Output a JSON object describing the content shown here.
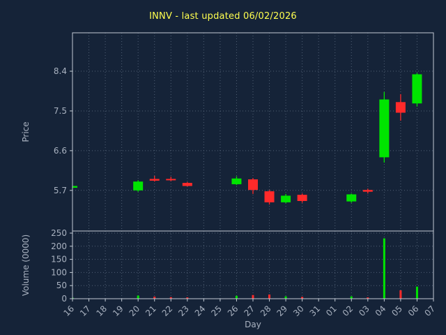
{
  "title": "INNV - last updated 06/02/2026",
  "price_axis_label": "Price",
  "volume_axis_label": "Volume (0000)",
  "x_axis_label": "Day",
  "colors": {
    "background": "#152338",
    "grid": "#8293a8",
    "axis_line": "#c2cad4",
    "axis_text": "#a9b2c0",
    "title": "#ffff4f",
    "up": "#00e400",
    "down": "#ff2a2a"
  },
  "chart_data": {
    "type": "candlestick+volume",
    "title": "INNV - last updated 06/02/2026",
    "xlabel": "Day",
    "ylabel_price": "Price",
    "ylabel_volume": "Volume (0000)",
    "x_ticks": [
      "16",
      "17",
      "18",
      "19",
      "20",
      "21",
      "22",
      "23",
      "24",
      "25",
      "26",
      "27",
      "28",
      "29",
      "30",
      "31",
      "01",
      "02",
      "03",
      "04",
      "05",
      "06",
      "07"
    ],
    "price_ticks": [
      5.7,
      6.6,
      7.5,
      8.4
    ],
    "price_range": [
      4.78,
      9.27
    ],
    "volume_ticks": [
      0,
      50,
      100,
      150,
      200,
      250
    ],
    "volume_range": [
      0,
      258
    ],
    "grid": "dotted",
    "candles": [
      {
        "day": "16",
        "open": 5.76,
        "high": 5.8,
        "low": 5.75,
        "close": 5.8,
        "volume": 4
      },
      {
        "day": "20",
        "open": 5.7,
        "high": 5.93,
        "low": 5.67,
        "close": 5.9,
        "volume": 12
      },
      {
        "day": "21",
        "open": 5.96,
        "high": 6.03,
        "low": 5.9,
        "close": 5.92,
        "volume": 8
      },
      {
        "day": "22",
        "open": 5.96,
        "high": 6.01,
        "low": 5.91,
        "close": 5.93,
        "volume": 6
      },
      {
        "day": "23",
        "open": 5.87,
        "high": 5.89,
        "low": 5.79,
        "close": 5.8,
        "volume": 5
      },
      {
        "day": "26",
        "open": 5.84,
        "high": 6.02,
        "low": 5.82,
        "close": 5.97,
        "volume": 11
      },
      {
        "day": "27",
        "open": 5.95,
        "high": 5.98,
        "low": 5.62,
        "close": 5.71,
        "volume": 14
      },
      {
        "day": "28",
        "open": 5.68,
        "high": 5.71,
        "low": 5.38,
        "close": 5.43,
        "volume": 16
      },
      {
        "day": "29",
        "open": 5.43,
        "high": 5.62,
        "low": 5.41,
        "close": 5.58,
        "volume": 9
      },
      {
        "day": "30",
        "open": 5.6,
        "high": 5.63,
        "low": 5.42,
        "close": 5.46,
        "volume": 7
      },
      {
        "day": "02",
        "open": 5.45,
        "high": 5.63,
        "low": 5.42,
        "close": 5.61,
        "volume": 9
      },
      {
        "day": "03",
        "open": 5.71,
        "high": 5.74,
        "low": 5.63,
        "close": 5.67,
        "volume": 5
      },
      {
        "day": "04",
        "open": 6.45,
        "high": 7.93,
        "low": 6.33,
        "close": 7.76,
        "volume": 230
      },
      {
        "day": "05",
        "open": 7.7,
        "high": 7.88,
        "low": 7.28,
        "close": 7.46,
        "volume": 32
      },
      {
        "day": "06",
        "open": 7.67,
        "high": 8.36,
        "low": 7.6,
        "close": 8.33,
        "volume": 46
      }
    ]
  }
}
